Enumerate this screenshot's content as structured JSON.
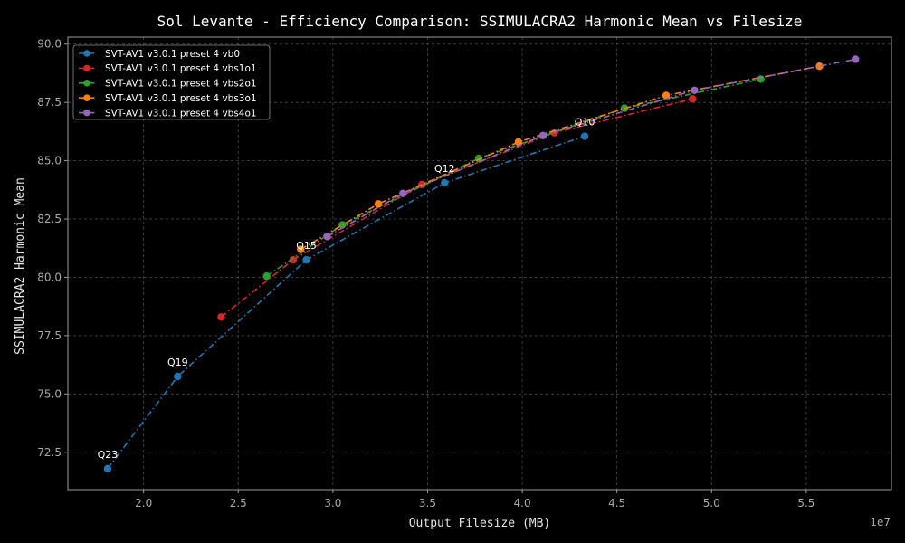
{
  "chart_data": {
    "type": "line",
    "title": "Sol Levante - Efficiency Comparison: SSIMULACRA2 Harmonic Mean vs Filesize",
    "xlabel": "Output Filesize (MB)",
    "ylabel": "SSIMULACRA2 Harmonic Mean",
    "x_scale_note": "1e7",
    "xlim": [
      1.6,
      5.95
    ],
    "ylim": [
      70.9,
      90.3
    ],
    "x_ticks": [
      2.0,
      2.5,
      3.0,
      3.5,
      4.0,
      4.5,
      5.0,
      5.5
    ],
    "x_tick_labels": [
      "2.0",
      "2.5",
      "3.0",
      "3.5",
      "4.0",
      "4.5",
      "5.0",
      "5.5"
    ],
    "y_ticks": [
      72.5,
      75.0,
      77.5,
      80.0,
      82.5,
      85.0,
      87.5,
      90.0
    ],
    "y_tick_labels": [
      "72.5",
      "75.0",
      "77.5",
      "80.0",
      "82.5",
      "85.0",
      "87.5",
      "90.0"
    ],
    "grid": true,
    "legend_position": "top-left",
    "series": [
      {
        "name": "SVT-AV1 v3.0.1 preset 4 vb0",
        "color": "#1f77b4",
        "x": [
          1.81,
          2.18,
          2.86,
          3.59,
          4.33
        ],
        "y": [
          71.8,
          75.75,
          80.75,
          84.05,
          86.05
        ]
      },
      {
        "name": "SVT-AV1 v3.0.1 preset 4 vbs1o1",
        "color": "#d62728",
        "x": [
          2.41,
          2.79,
          3.47,
          4.17,
          4.9
        ],
        "y": [
          78.3,
          80.75,
          83.98,
          86.2,
          87.65
        ]
      },
      {
        "name": "SVT-AV1 v3.0.1 preset 4 vbs2o1",
        "color": "#2ca02c",
        "x": [
          2.65,
          3.05,
          3.77,
          4.54,
          5.26
        ],
        "y": [
          80.05,
          82.25,
          85.1,
          87.25,
          88.5
        ]
      },
      {
        "name": "SVT-AV1 v3.0.1 preset 4 vbs3o1",
        "color": "#ff7f0e",
        "x": [
          2.83,
          3.24,
          3.98,
          4.76,
          5.57
        ],
        "y": [
          81.2,
          83.15,
          85.8,
          87.8,
          89.05
        ]
      },
      {
        "name": "SVT-AV1 v3.0.1 preset 4 vbs4o1",
        "color": "#9467bd",
        "x": [
          2.97,
          3.37,
          4.11,
          4.91,
          5.76
        ],
        "y": [
          81.75,
          83.6,
          86.08,
          88.02,
          89.35
        ]
      }
    ],
    "annotations": [
      {
        "text": "Q23",
        "x": 1.81,
        "y": 71.8
      },
      {
        "text": "Q19",
        "x": 2.18,
        "y": 75.75
      },
      {
        "text": "Q15",
        "x": 2.86,
        "y": 80.75
      },
      {
        "text": "Q12",
        "x": 3.59,
        "y": 84.05
      },
      {
        "text": "Q10",
        "x": 4.33,
        "y": 86.05
      }
    ]
  }
}
